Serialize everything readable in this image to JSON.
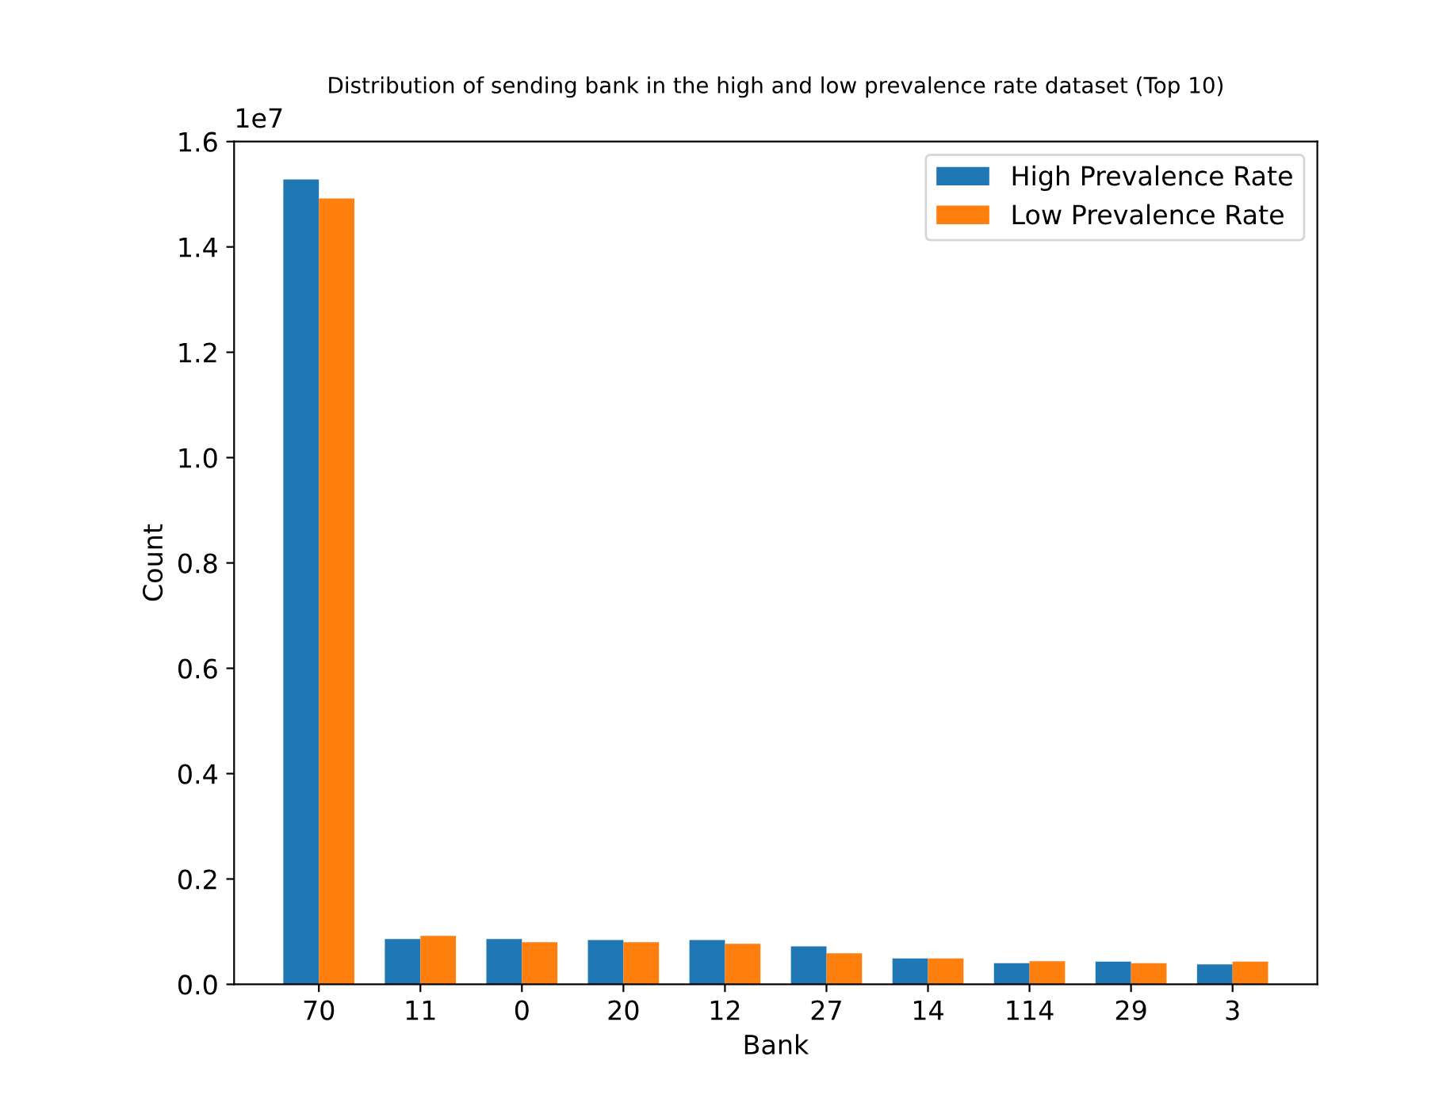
{
  "chart_data": {
    "type": "bar",
    "title": "Distribution of sending bank in the high and low prevalence rate dataset (Top 10)",
    "xlabel": "Bank",
    "ylabel": "Count",
    "categories": [
      "70",
      "11",
      "0",
      "20",
      "12",
      "27",
      "14",
      "114",
      "29",
      "3"
    ],
    "series": [
      {
        "name": "High Prevalence Rate",
        "color": "#1f77b4",
        "values": [
          1.528,
          0.086,
          0.086,
          0.084,
          0.084,
          0.072,
          0.049,
          0.04,
          0.043,
          0.038
        ]
      },
      {
        "name": "Low Prevalence Rate",
        "color": "#ff7f0e",
        "values": [
          1.492,
          0.092,
          0.08,
          0.08,
          0.077,
          0.059,
          0.049,
          0.044,
          0.04,
          0.043
        ]
      }
    ],
    "ylim": [
      0,
      1.6
    ],
    "yticks": [
      {
        "value": 0,
        "label": "0.0"
      },
      0.2,
      0.4,
      0.6,
      0.8,
      {
        "value": 1,
        "label": "1.0"
      },
      1.2,
      1.4,
      1.6
    ],
    "annotations": [
      "1e7"
    ],
    "legend": "top right",
    "grid": false
  }
}
